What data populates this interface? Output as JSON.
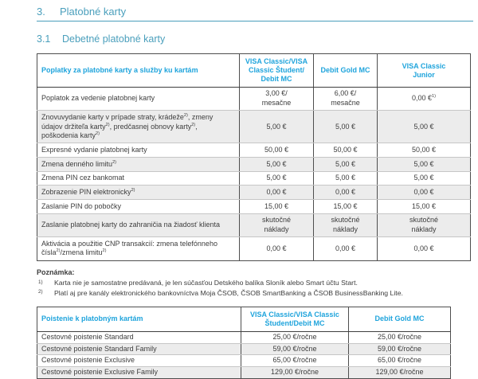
{
  "page": {
    "section_number": "3.",
    "section_title": "Platobné karty",
    "subsection_number": "3.1",
    "subsection_title": "Debetné platobné karty"
  },
  "colors": {
    "heading_teal": "#4a9fbc",
    "table_header_blue": "#1fa4dc",
    "row_shade_gray": "#ececec",
    "border_dark": "#4e4e4e",
    "body_text": "#3d3d3d"
  },
  "fees_table": {
    "header": [
      "Poplatky za platobné karty a služby ku kartám",
      "VISA Classic/VISA\nClassic Študent/\nDebit MC",
      "Debit Gold MC",
      "VISA Classic\nJunior"
    ],
    "rows": [
      {
        "label": "Poplatok za vedenie platobnej karty",
        "values": [
          "3,00 €/\nmesačne",
          "6,00 €/\nmesačne",
          "0,00 €^{1)}"
        ]
      },
      {
        "label": "Znovuvydanie karty v prípade straty, krádeže^{2)}, zmeny údajov držiteľa karty^{2)}, predčasnej obnovy karty^{2)}, poškodenia karty^{2)}",
        "values": [
          "5,00 €",
          "5,00 €",
          "5,00 €"
        ]
      },
      {
        "label": "Expresné vydanie platobnej karty",
        "values": [
          "50,00 €",
          "50,00 €",
          "50,00 €"
        ]
      },
      {
        "label": "Zmena denného limitu^{2)}",
        "values": [
          "5,00 €",
          "5,00 €",
          "5,00 €"
        ]
      },
      {
        "label": "Zmena PIN cez bankomat",
        "values": [
          "5,00 €",
          "5,00 €",
          "5,00 €"
        ]
      },
      {
        "label": "Zobrazenie PIN elektronicky^{2)}",
        "values": [
          "0,00 €",
          "0,00 €",
          "0,00 €"
        ]
      },
      {
        "label": "Zaslanie PIN do pobočky",
        "values": [
          "15,00 €",
          "15,00 €",
          "15,00 €"
        ]
      },
      {
        "label": "Zaslanie platobnej karty do zahraničia na žiadosť klienta",
        "values": [
          "skutočné\nnáklady",
          "skutočné\nnáklady",
          "skutočné\nnáklady"
        ]
      },
      {
        "label": "Aktivácia a použitie CNP transakcií: zmena telefónneho čísla^{2)}/zmena limitu^{2)}",
        "values": [
          "0,00 €",
          "0,00 €",
          "0,00 €"
        ]
      }
    ]
  },
  "notes": {
    "title": "Poznámka:",
    "items": [
      {
        "marker": "1)",
        "text": "Karta nie je samostatne predávaná, je len súčasťou Detského balíka Sloník alebo Smart účtu Start."
      },
      {
        "marker": "2)",
        "text": "Platí aj pre kanály elektronického bankovníctva Moja ČSOB, ČSOB SmartBanking a ČSOB BusinessBanking Lite."
      }
    ]
  },
  "insurance_table": {
    "header": [
      "Poistenie k platobným kartám",
      "VISA Classic/VISA Classic\nŠtudent/Debit MC",
      "Debit Gold MC"
    ],
    "rows": [
      {
        "label": "Cestovné poistenie Standard",
        "values": [
          "25,00 €/ročne",
          "25,00 €/ročne"
        ]
      },
      {
        "label": "Cestovné poistenie Standard Family",
        "values": [
          "59,00 €/ročne",
          "59,00 €/ročne"
        ]
      },
      {
        "label": "Cestovné poistenie Exclusive",
        "values": [
          "65,00 €/ročne",
          "65,00 €/ročne"
        ]
      },
      {
        "label": "Cestovné poistenie Exclusive Family",
        "values": [
          "129,00 €/ročne",
          "129,00 €/ročne"
        ]
      }
    ]
  }
}
